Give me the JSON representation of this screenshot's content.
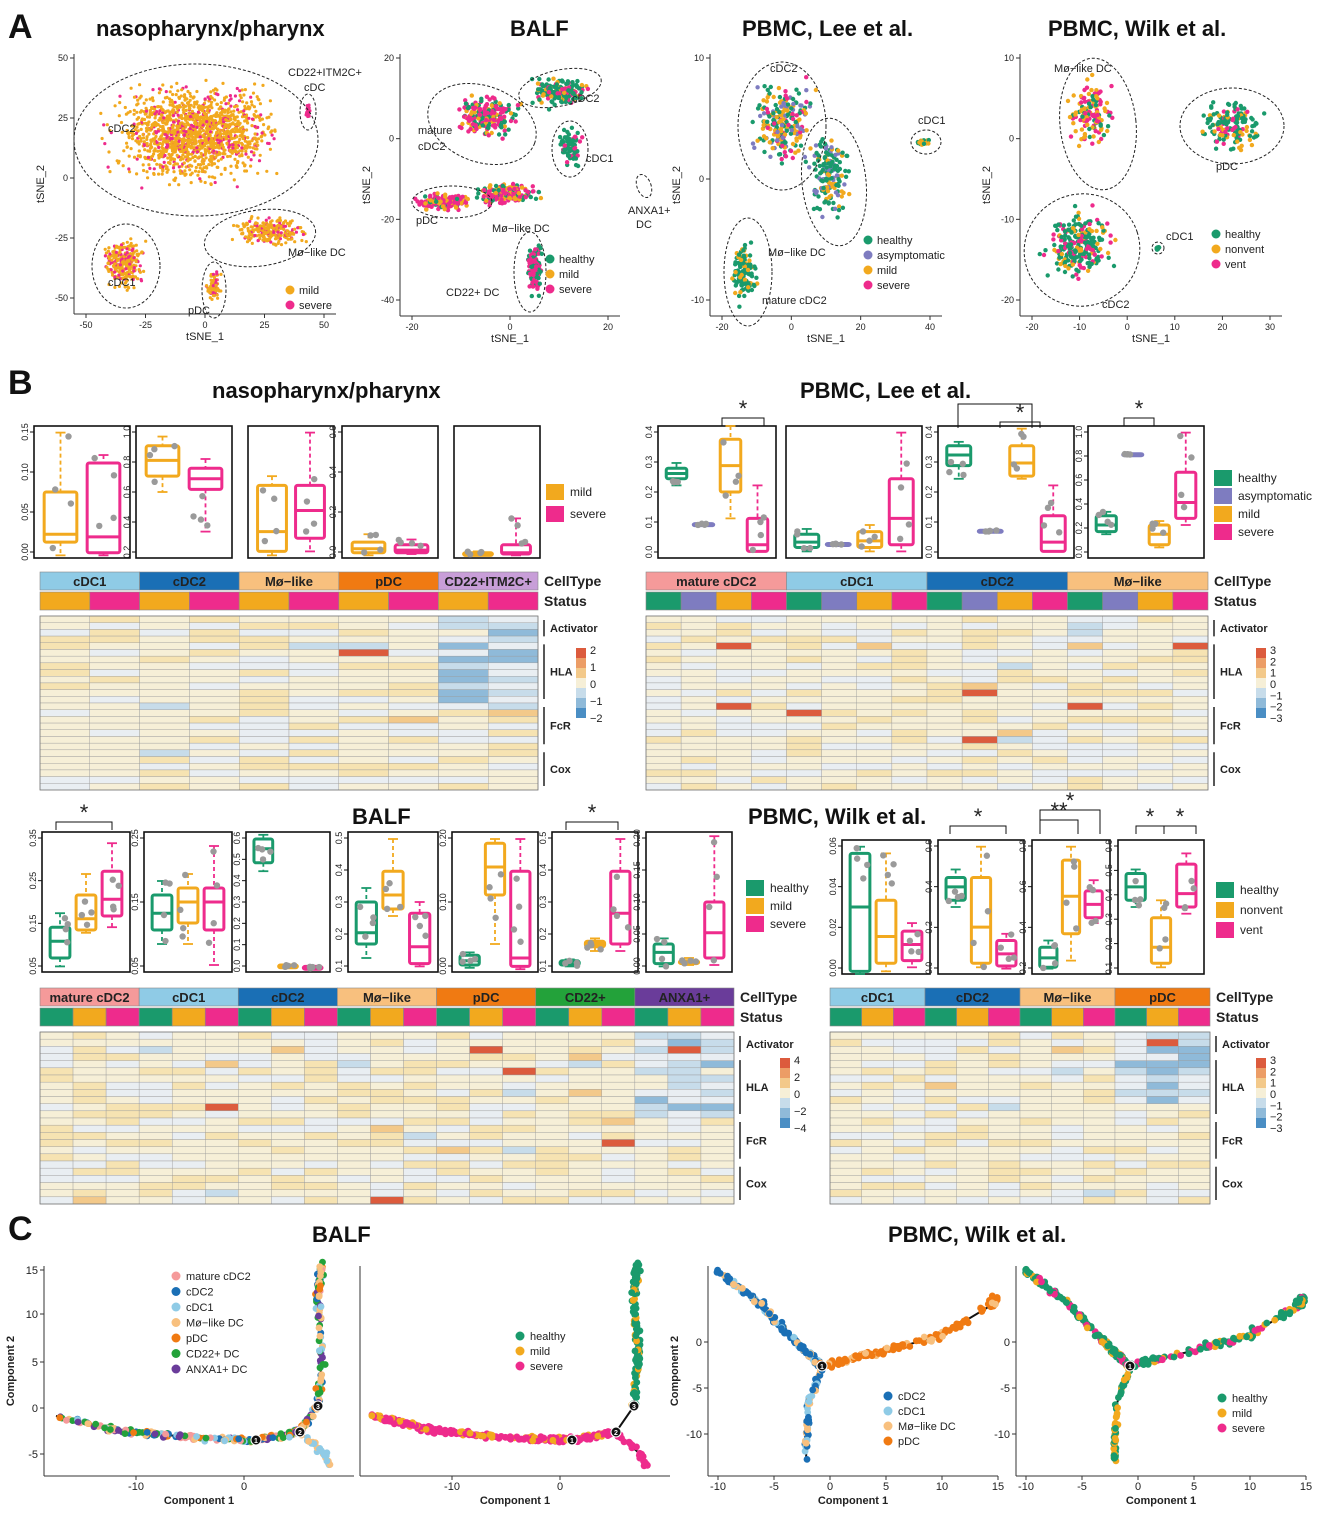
{
  "colors": {
    "healthy": "#1a9a6c",
    "asymptomatic": "#7e7cc0",
    "mild": "#f2a91e",
    "severe": "#ee2b8c",
    "nonvent": "#f2a91e",
    "vent": "#ee2b8c",
    "cDC1": "#8fcbe6",
    "cDC2": "#1a6fb5",
    "mature_cDC2": "#f59a9a",
    "Mo_like": "#f8c07e",
    "pDC": "#f07a12",
    "CD22": "#23a23a",
    "ANXA1": "#6a3c9a",
    "CD22ITM2C": "#c89ed8"
  },
  "panel_letters": {
    "a": "A",
    "b": "B",
    "c": "C"
  },
  "panelA": {
    "titles": [
      "nasopharynx/pharynx",
      "BALF",
      "PBMC, Lee et al.",
      "PBMC, Wilk et al."
    ],
    "xlabel": "tSNE_1",
    "ylabel": "tSNE_2",
    "plots": [
      {
        "xticks": [
          "-50",
          "-25",
          "0",
          "25",
          "50"
        ],
        "yticks": [
          "50",
          "25",
          "0",
          "-25",
          "-50"
        ],
        "labels": [
          "cDC2",
          "CD22+ITM2C+",
          "cDC",
          "cDC1",
          "pDC",
          "Mø−like DC"
        ],
        "legend": [
          "mild",
          "severe"
        ]
      },
      {
        "xticks": [
          "-20",
          "0",
          "20"
        ],
        "yticks": [
          "20",
          "0",
          "-20",
          "-40"
        ],
        "labels": [
          "mature",
          "cDC2",
          "cDC2",
          "cDC1",
          "ANXA1+",
          "DC",
          "pDC",
          "Mø−like DC",
          "CD22+ DC"
        ],
        "legend": [
          "healthy",
          "mild",
          "severe"
        ]
      },
      {
        "xticks": [
          "-20",
          "0",
          "20",
          "40"
        ],
        "yticks": [
          "10",
          "0",
          "-10"
        ],
        "labels": [
          "cDC2",
          "cDC1",
          "Mø−like DC",
          "mature cDC2"
        ],
        "legend": [
          "healthy",
          "asymptomatic",
          "mild",
          "severe"
        ]
      },
      {
        "xticks": [
          "-20",
          "-10",
          "0",
          "10",
          "20",
          "30"
        ],
        "yticks": [
          "10",
          "0",
          "-10",
          "-20"
        ],
        "labels": [
          "Mø−like DC",
          "pDC",
          "cDC1",
          "cDC2"
        ],
        "legend": [
          "healthy",
          "nonvent",
          "vent"
        ]
      }
    ]
  },
  "panelB": {
    "titles": [
      "nasopharynx/pharynx",
      "PBMC, Lee et al.",
      "BALF",
      "PBMC, Wilk et al."
    ],
    "ann_labels": [
      "CellType",
      "Status"
    ],
    "gene_groups": [
      "Activator",
      "HLA",
      "FcR",
      "Cox"
    ],
    "naso": {
      "legend": [
        "mild",
        "severe"
      ],
      "yticks": [
        [
          "0.15",
          "0.10",
          "0.05",
          "0.00"
        ],
        [
          "1.0",
          "0.8",
          "0.6",
          "0.4",
          "0.2"
        ],
        [],
        [
          "0.6",
          "0.4",
          "0.2",
          "0.0"
        ],
        []
      ],
      "celltypes": [
        "cDC1",
        "cDC2",
        "Mø−like",
        "pDC",
        "CD22+ITM2C+"
      ],
      "scale": [
        "2",
        "1",
        "0",
        "−1",
        "−2"
      ]
    },
    "lee": {
      "legend": [
        "healthy",
        "asymptomatic",
        "mild",
        "severe"
      ],
      "yticks": [
        [
          "0.4",
          "0.3",
          "0.2",
          "0.1",
          "0.0"
        ],
        [],
        [
          "0.4",
          "0.3",
          "0.2",
          "0.1",
          "0.0"
        ],
        [
          "1.0",
          "0.8",
          "0.6",
          "0.4",
          "0.2",
          "0.0"
        ]
      ],
      "sig": [
        "*",
        "*",
        "*",
        "*"
      ],
      "celltypes": [
        "mature cDC2",
        "cDC1",
        "cDC2",
        "Mø−like"
      ],
      "scale": [
        "3",
        "2",
        "1",
        "0",
        "−1",
        "−2",
        "−3"
      ]
    },
    "balf": {
      "legend": [
        "healthy",
        "mild",
        "severe"
      ],
      "yticks": [
        [
          "0.35",
          "0.25",
          "0.15",
          "0.05"
        ],
        [
          "0.25",
          "0.15",
          "0.05"
        ],
        [
          "0.6",
          "0.5",
          "0.4",
          "0.3",
          "0.2",
          "0.1",
          "0.0"
        ],
        [
          "0.5",
          "0.4",
          "0.3",
          "0.2",
          "0.1"
        ],
        [
          "0.20",
          "0.10",
          "0.00"
        ],
        [
          "0.5",
          "0.4",
          "0.3",
          "0.2",
          "0.1"
        ],
        [
          "0.20",
          "0.15",
          "0.10",
          "0.05",
          "0.00"
        ]
      ],
      "sig": [
        "*",
        "*"
      ],
      "celltypes": [
        "mature cDC2",
        "cDC1",
        "cDC2",
        "Mø−like",
        "pDC",
        "CD22+",
        "ANXA1+"
      ],
      "scale": [
        "4",
        "2",
        "0",
        "−2",
        "−4"
      ]
    },
    "wilk": {
      "legend": [
        "healthy",
        "nonvent",
        "vent"
      ],
      "yticks": [
        [
          "0.06",
          "0.04",
          "0.02",
          "0.00"
        ],
        [
          "0.6",
          "0.4",
          "0.2",
          "0.0"
        ],
        [
          "0.8",
          "0.6",
          "0.4",
          "0.2"
        ],
        [
          "0.6",
          "0.5",
          "0.4",
          "0.3",
          "0.2",
          "0.1"
        ]
      ],
      "sig": [
        "*",
        "**",
        "*",
        "*",
        "*"
      ],
      "celltypes": [
        "cDC1",
        "cDC2",
        "Mø−like",
        "pDC"
      ],
      "scale": [
        "3",
        "2",
        "1",
        "0",
        "−1",
        "−2",
        "−3"
      ]
    }
  },
  "panelC": {
    "titles": [
      "BALF",
      "PBMC, Wilk et al."
    ],
    "xlabel": "Component 1",
    "ylabel": "Component 2",
    "balf_xticks": [
      "-10",
      "0"
    ],
    "balf_yticks": [
      "15",
      "10",
      "5",
      "0",
      "-5"
    ],
    "wilk_xticks": [
      "-10",
      "-5",
      "0",
      "5",
      "10",
      "15"
    ],
    "wilk_yticks": [
      "0",
      "-5",
      "-10"
    ],
    "balf_celltype_legend": [
      "mature cDC2",
      "cDC2",
      "cDC1",
      "Mø−like DC",
      "pDC",
      "CD22+ DC",
      "ANXA1+ DC"
    ],
    "balf_status_legend": [
      "healthy",
      "mild",
      "severe"
    ],
    "wilk_celltype_legend": [
      "cDC2",
      "cDC1",
      "Mø−like DC",
      "pDC"
    ],
    "wilk_status_legend": [
      "healthy",
      "mild",
      "severe"
    ],
    "nodes": [
      "1",
      "2",
      "3"
    ]
  }
}
